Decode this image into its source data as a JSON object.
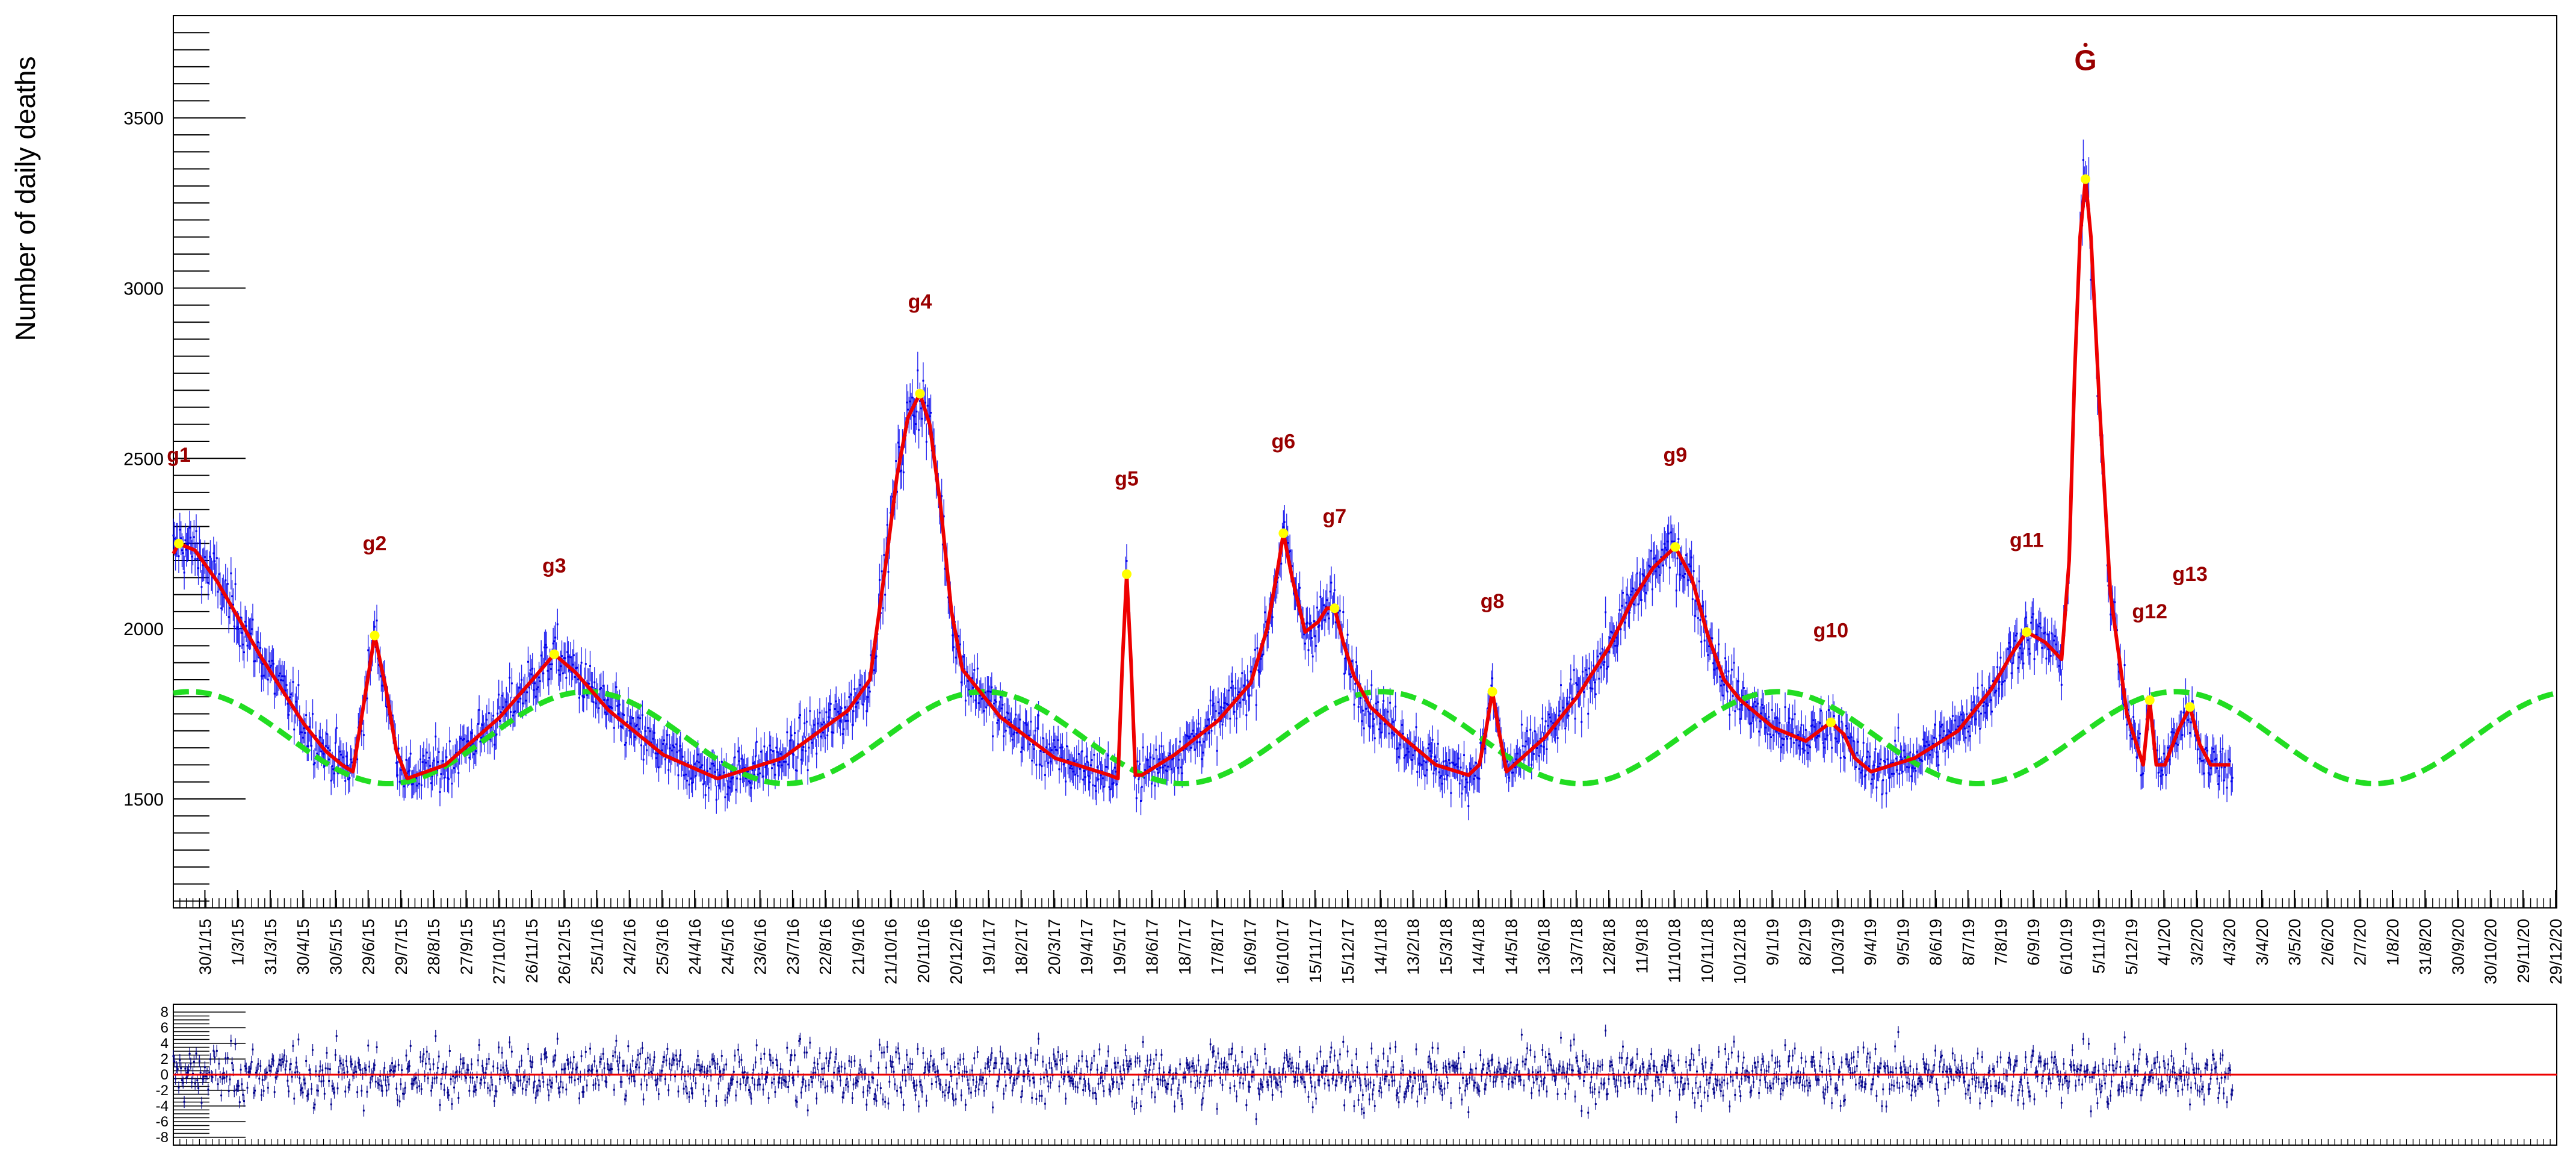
{
  "chart_data": [
    {
      "type": "scatter",
      "title": "",
      "ylabel": "Number of daily deaths",
      "xlabel": "",
      "ylim": [
        1180,
        3800
      ],
      "y_ticks": [
        "1500",
        "2000",
        "2500",
        "3000",
        "3500"
      ],
      "y_tick_values": [
        1500,
        2000,
        2500,
        3000,
        3500
      ],
      "x_tick_labels": [
        "30/1/15",
        "1/3/15",
        "31/3/15",
        "30/4/15",
        "30/5/15",
        "29/6/15",
        "29/7/15",
        "28/8/15",
        "27/9/15",
        "27/10/15",
        "26/11/15",
        "26/12/15",
        "25/1/16",
        "24/2/16",
        "25/3/16",
        "24/4/16",
        "24/5/16",
        "23/6/16",
        "23/7/16",
        "22/8/16",
        "21/9/16",
        "21/10/16",
        "20/11/16",
        "20/12/16",
        "19/1/17",
        "18/2/17",
        "20/3/17",
        "19/4/17",
        "19/5/17",
        "18/6/17",
        "18/7/17",
        "17/8/17",
        "16/9/17",
        "16/10/17",
        "15/11/17",
        "15/12/17",
        "14/1/18",
        "13/2/18",
        "15/3/18",
        "14/4/18",
        "14/5/18",
        "13/6/18",
        "13/7/18",
        "12/8/18",
        "11/9/18",
        "11/10/18",
        "10/11/18",
        "10/12/18",
        "9/1/19",
        "8/2/19",
        "10/3/19",
        "9/4/19",
        "9/5/19",
        "8/6/19",
        "8/7/19",
        "7/8/19",
        "6/9/19",
        "6/10/19",
        "5/11/19",
        "5/12/19",
        "4/1/20",
        "3/2/20",
        "4/3/20",
        "3/4/20",
        "3/5/20",
        "2/6/20",
        "2/7/20",
        "1/8/20",
        "31/8/20",
        "30/9/20",
        "30/10/20",
        "29/11/20",
        "29/12/20"
      ],
      "x_range_days": [
        0,
        2190
      ],
      "x_tick_first_day": 29,
      "x_tick_step_days": 30,
      "baseline": {
        "name": "",
        "mean": 1680,
        "amplitude": 135,
        "period_days": 365,
        "peak_day": 380,
        "color": "#22dd22",
        "style": "dashed"
      },
      "data_color": "#0000ee",
      "fit_color": "#ee0000",
      "peak_marker_color": "#ffff00",
      "series": [
        {
          "name": "",
          "peaks": [
            {
              "label": "g1",
              "day": 5,
              "value": 2250,
              "label_value": 2490
            },
            {
              "label": "g2",
              "day": 185,
              "value": 1980,
              "label_value": 2230
            },
            {
              "label": "g3",
              "day": 350,
              "value": 1925,
              "label_value": 2165
            },
            {
              "label": "g4",
              "day": 686,
              "value": 2690,
              "label_value": 2940
            },
            {
              "label": "g5",
              "day": 876,
              "value": 2160,
              "label_value": 2420
            },
            {
              "label": "g6",
              "day": 1020,
              "value": 2280,
              "label_value": 2530
            },
            {
              "label": "g7",
              "day": 1067,
              "value": 2060,
              "label_value": 2310
            },
            {
              "label": "g8",
              "day": 1212,
              "value": 1815,
              "label_value": 2060
            },
            {
              "label": "g9",
              "day": 1380,
              "value": 2240,
              "label_value": 2490
            },
            {
              "label": "g10",
              "day": 1523,
              "value": 1725,
              "label_value": 1975
            },
            {
              "label": "g11",
              "day": 1703,
              "value": 1990,
              "label_value": 2240
            },
            {
              "label": "G",
              "day": 1757,
              "value": 3320,
              "label_value": 3640
            },
            {
              "label": "g12",
              "day": 1816,
              "value": 1790,
              "label_value": 2030
            },
            {
              "label": "g13",
              "day": 1853,
              "value": 1770,
              "label_value": 2140
            }
          ]
        }
      ],
      "fit_curve": {
        "x": [
          0,
          5,
          20,
          40,
          60,
          80,
          100,
          120,
          140,
          155,
          165,
          175,
          185,
          195,
          205,
          215,
          250,
          300,
          330,
          350,
          370,
          400,
          450,
          500,
          560,
          620,
          640,
          655,
          665,
          675,
          686,
          695,
          705,
          715,
          725,
          760,
          810,
          860,
          868,
          872,
          876,
          880,
          884,
          890,
          920,
          960,
          990,
          1005,
          1015,
          1020,
          1028,
          1040,
          1052,
          1060,
          1067,
          1075,
          1085,
          1100,
          1130,
          1160,
          1190,
          1200,
          1206,
          1212,
          1218,
          1225,
          1260,
          1290,
          1320,
          1340,
          1360,
          1380,
          1395,
          1410,
          1425,
          1440,
          1470,
          1500,
          1523,
          1535,
          1545,
          1560,
          1600,
          1640,
          1670,
          1690,
          1703,
          1720,
          1735,
          1742,
          1747,
          1752,
          1757,
          1762,
          1770,
          1780,
          1795,
          1805,
          1810,
          1816,
          1822,
          1830,
          1842,
          1853,
          1862,
          1872,
          1890
        ],
        "y": [
          2220,
          2250,
          2230,
          2140,
          2030,
          1920,
          1820,
          1720,
          1640,
          1600,
          1580,
          1780,
          1980,
          1830,
          1640,
          1560,
          1600,
          1740,
          1850,
          1925,
          1870,
          1760,
          1630,
          1560,
          1620,
          1760,
          1850,
          2200,
          2450,
          2620,
          2690,
          2600,
          2360,
          2050,
          1880,
          1740,
          1620,
          1570,
          1560,
          1900,
          2160,
          1900,
          1570,
          1570,
          1630,
          1730,
          1840,
          2000,
          2180,
          2280,
          2150,
          1990,
          2020,
          2060,
          2060,
          1960,
          1860,
          1770,
          1680,
          1600,
          1570,
          1600,
          1700,
          1815,
          1700,
          1580,
          1680,
          1800,
          1950,
          2080,
          2180,
          2240,
          2150,
          1980,
          1850,
          1790,
          1710,
          1670,
          1725,
          1690,
          1620,
          1580,
          1620,
          1700,
          1820,
          1930,
          1990,
          1960,
          1910,
          2200,
          2750,
          3150,
          3320,
          3150,
          2650,
          2100,
          1750,
          1650,
          1600,
          1790,
          1600,
          1600,
          1700,
          1770,
          1660,
          1600,
          1600
        ]
      },
      "residual_panel": {
        "ylim": [
          -9,
          9
        ],
        "y_ticks": [
          "8",
          "6",
          "4",
          "2",
          "0",
          "-2",
          "-4",
          "-6",
          "-8"
        ],
        "y_tick_values": [
          8,
          6,
          4,
          2,
          0,
          -2,
          -4,
          -6,
          -8
        ],
        "zero_line_color": "#ee0000",
        "data_color": "#00008b"
      }
    }
  ]
}
